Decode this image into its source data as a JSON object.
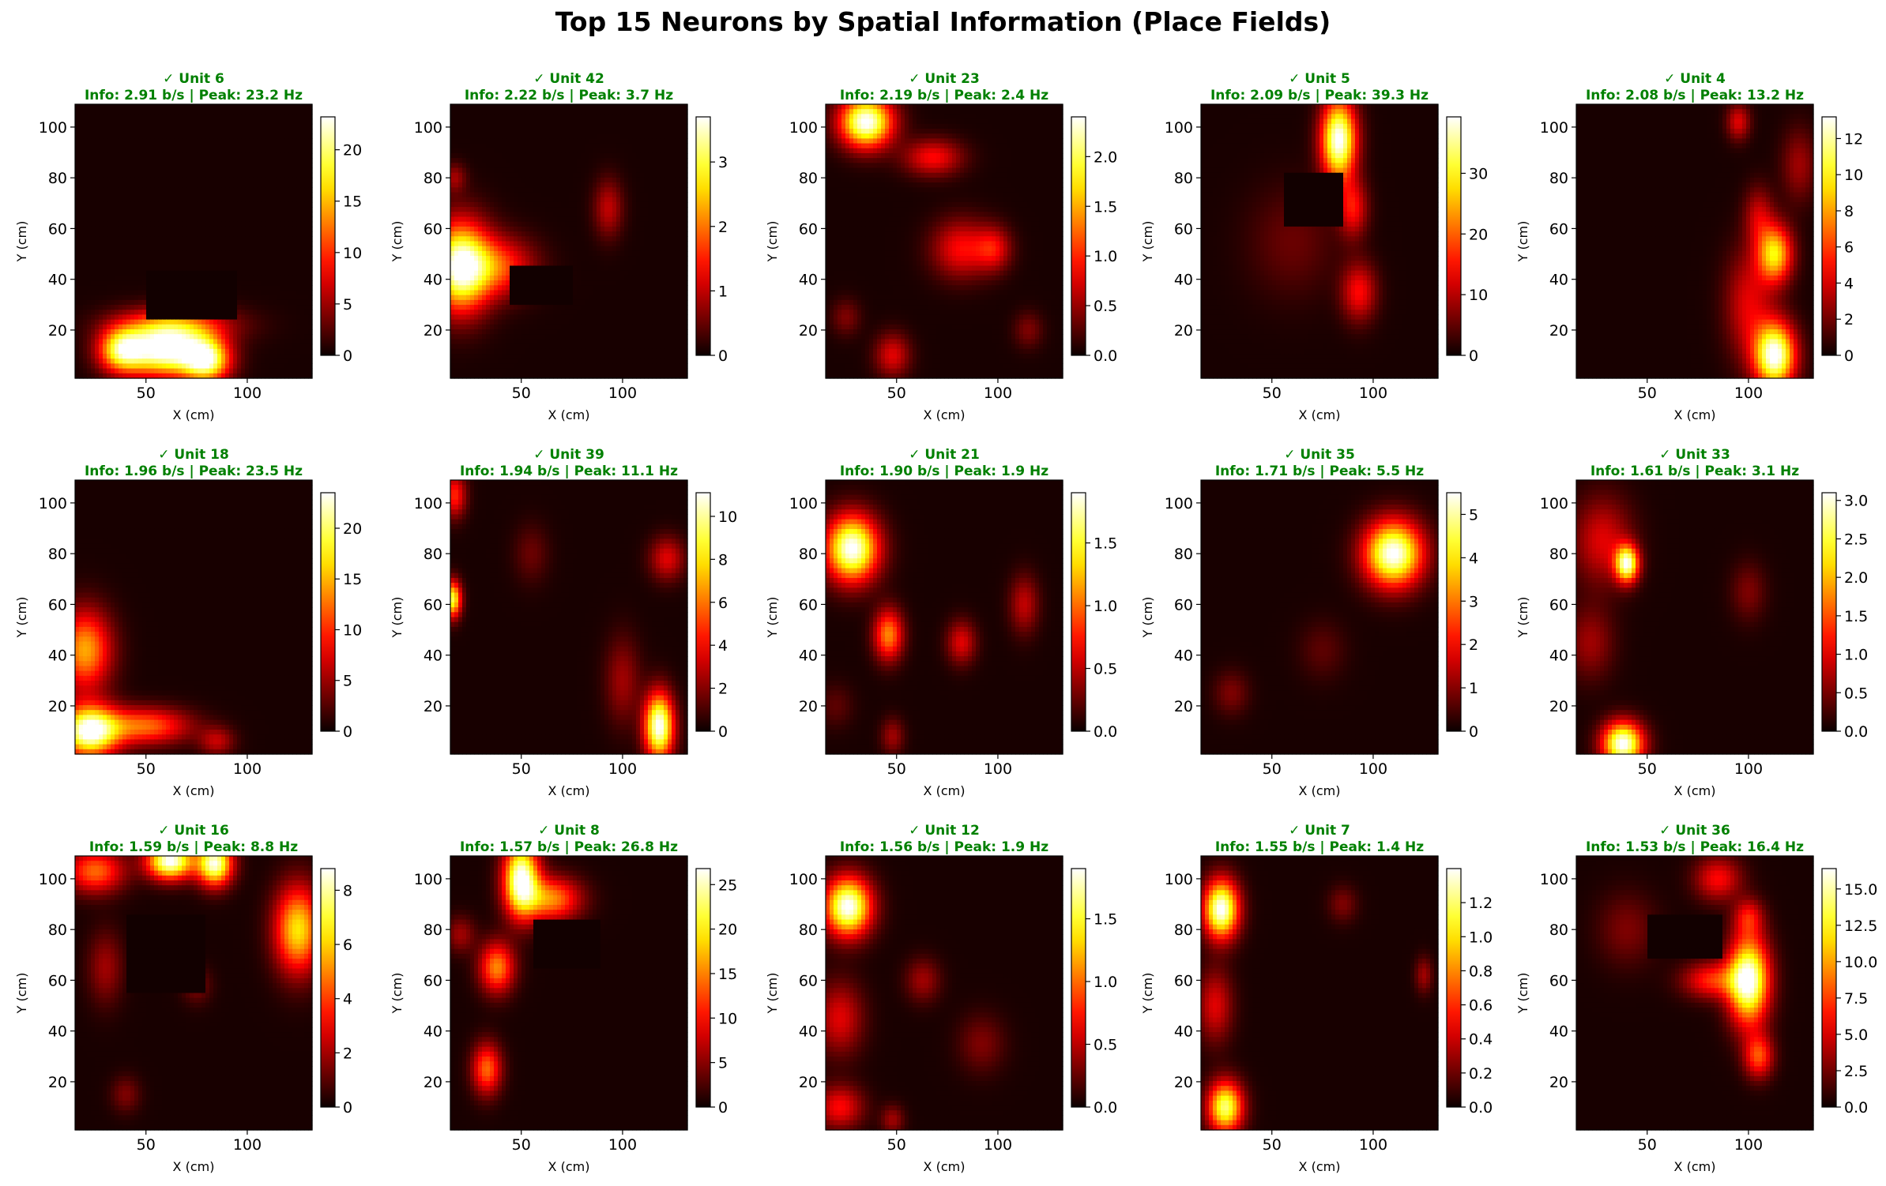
{
  "figure": {
    "title": "Top 15 Neurons by Spatial Information (Place Fields)"
  },
  "chart_data": {
    "type": "heatmap",
    "colormap": "hot",
    "status_color": "#008000",
    "xlabel": "X (cm)",
    "ylabel": "Y (cm)",
    "xlim": [
      15,
      132
    ],
    "ylim": [
      1,
      109
    ],
    "xticks": [
      50,
      100
    ],
    "yticks": [
      20,
      40,
      60,
      80,
      100
    ],
    "panels": [
      {
        "unit": "✓ Unit 6",
        "stats": "Info: 2.91 b/s | Peak: 23.2 Hz",
        "peak": 23.2,
        "cbar_max": 23.2,
        "cbar_ticks": [
          0,
          5,
          10,
          15,
          20
        ],
        "fields": [
          [
            60,
            12,
            14,
            7,
            1.0
          ],
          [
            38,
            12,
            8,
            6,
            0.7
          ],
          [
            80,
            8,
            8,
            6,
            0.8
          ],
          [
            65,
            22,
            20,
            5,
            0.4
          ]
        ],
        "holes": [
          [
            50,
            95,
            24,
            44
          ]
        ]
      },
      {
        "unit": "✓ Unit 42",
        "stats": "Info: 2.22 b/s | Peak: 3.7 Hz",
        "peak": 3.7,
        "cbar_max": 3.7,
        "cbar_ticks": [
          0,
          1,
          2,
          3
        ],
        "fields": [
          [
            20,
            45,
            10,
            12,
            1.0
          ],
          [
            40,
            45,
            12,
            8,
            0.4
          ],
          [
            93,
            68,
            5,
            8,
            0.25
          ],
          [
            17,
            80,
            4,
            4,
            0.2
          ]
        ],
        "holes": [
          [
            45,
            75,
            30,
            45
          ]
        ]
      },
      {
        "unit": "✓ Unit 23",
        "stats": "Info: 2.19 b/s | Peak: 2.4 Hz",
        "peak": 2.4,
        "cbar_max": 2.4,
        "cbar_ticks": [
          0.0,
          0.5,
          1.0,
          1.5,
          2.0
        ],
        "fields": [
          [
            35,
            102,
            9,
            7,
            1.0
          ],
          [
            68,
            88,
            10,
            5,
            0.35
          ],
          [
            82,
            52,
            10,
            8,
            0.35
          ],
          [
            98,
            52,
            6,
            6,
            0.3
          ],
          [
            48,
            10,
            6,
            6,
            0.3
          ],
          [
            25,
            25,
            5,
            5,
            0.15
          ],
          [
            115,
            20,
            5,
            5,
            0.15
          ]
        ],
        "holes": []
      },
      {
        "unit": "✓ Unit 5",
        "stats": "Info: 2.09 b/s | Peak: 39.3 Hz",
        "peak": 39.3,
        "cbar_max": 39.3,
        "cbar_ticks": [
          0,
          10,
          20,
          30
        ],
        "fields": [
          [
            83,
            95,
            6,
            11,
            1.0
          ],
          [
            90,
            68,
            5,
            8,
            0.35
          ],
          [
            93,
            35,
            6,
            8,
            0.35
          ],
          [
            60,
            55,
            15,
            15,
            0.12
          ]
        ],
        "holes": [
          [
            55,
            85,
            60,
            82
          ]
        ]
      },
      {
        "unit": "✓ Unit 4",
        "stats": "Info: 2.08 b/s | Peak: 13.2 Hz",
        "peak": 13.2,
        "cbar_max": 13.2,
        "cbar_ticks": [
          0,
          2,
          4,
          6,
          8,
          10,
          12
        ],
        "fields": [
          [
            113,
            10,
            7,
            9,
            1.0
          ],
          [
            113,
            50,
            6,
            8,
            0.7
          ],
          [
            100,
            30,
            8,
            15,
            0.3
          ],
          [
            95,
            102,
            4,
            5,
            0.3
          ],
          [
            125,
            85,
            6,
            10,
            0.2
          ],
          [
            105,
            65,
            5,
            8,
            0.25
          ]
        ],
        "holes": []
      },
      {
        "unit": "✓ Unit 18",
        "stats": "Info: 1.96 b/s | Peak: 23.5 Hz",
        "peak": 23.5,
        "cbar_max": 23.5,
        "cbar_ticks": [
          0,
          5,
          10,
          15,
          20
        ],
        "fields": [
          [
            22,
            10,
            10,
            7,
            1.0
          ],
          [
            20,
            42,
            9,
            11,
            0.6
          ],
          [
            50,
            12,
            15,
            5,
            0.5
          ],
          [
            85,
            6,
            6,
            4,
            0.25
          ]
        ],
        "holes": []
      },
      {
        "unit": "✓ Unit 39",
        "stats": "Info: 1.94 b/s | Peak: 11.1 Hz",
        "peak": 11.1,
        "cbar_max": 11.1,
        "cbar_ticks": [
          0,
          2,
          4,
          6,
          8,
          10
        ],
        "fields": [
          [
            118,
            12,
            5,
            9,
            1.0
          ],
          [
            16,
            62,
            3,
            5,
            0.8
          ],
          [
            17,
            103,
            4,
            6,
            0.4
          ],
          [
            122,
            78,
            6,
            6,
            0.3
          ],
          [
            100,
            30,
            6,
            12,
            0.2
          ],
          [
            55,
            80,
            6,
            8,
            0.12
          ]
        ],
        "holes": []
      },
      {
        "unit": "✓ Unit 21",
        "stats": "Info: 1.90 b/s | Peak: 1.9 Hz",
        "peak": 1.9,
        "cbar_max": 1.9,
        "cbar_ticks": [
          0.0,
          0.5,
          1.0,
          1.5
        ],
        "fields": [
          [
            28,
            82,
            9,
            9,
            1.0
          ],
          [
            46,
            48,
            5,
            7,
            0.55
          ],
          [
            82,
            45,
            5,
            6,
            0.3
          ],
          [
            113,
            60,
            5,
            8,
            0.25
          ],
          [
            48,
            8,
            4,
            5,
            0.2
          ],
          [
            20,
            20,
            6,
            6,
            0.1
          ]
        ],
        "holes": []
      },
      {
        "unit": "✓ Unit 35",
        "stats": "Info: 1.71 b/s | Peak: 5.5 Hz",
        "peak": 5.5,
        "cbar_max": 5.5,
        "cbar_ticks": [
          0,
          1,
          2,
          3,
          4,
          5
        ],
        "fields": [
          [
            110,
            80,
            10,
            9,
            1.0
          ],
          [
            30,
            25,
            6,
            6,
            0.15
          ],
          [
            75,
            42,
            8,
            8,
            0.1
          ]
        ],
        "holes": []
      },
      {
        "unit": "✓ Unit 33",
        "stats": "Info: 1.61 b/s | Peak: 3.1 Hz",
        "peak": 3.1,
        "cbar_max": 3.1,
        "cbar_ticks": [
          0.0,
          0.5,
          1.0,
          1.5,
          2.0,
          2.5,
          3.0
        ],
        "fields": [
          [
            38,
            5,
            7,
            6,
            1.0
          ],
          [
            40,
            76,
            4,
            5,
            0.9
          ],
          [
            28,
            85,
            10,
            12,
            0.3
          ],
          [
            22,
            45,
            8,
            10,
            0.2
          ],
          [
            100,
            65,
            6,
            8,
            0.15
          ]
        ],
        "holes": []
      },
      {
        "unit": "✓ Unit 16",
        "stats": "Info: 1.59 b/s | Peak: 8.8 Hz",
        "peak": 8.8,
        "cbar_max": 8.8,
        "cbar_ticks": [
          0,
          2,
          4,
          6,
          8
        ],
        "fields": [
          [
            62,
            107,
            8,
            5,
            1.0
          ],
          [
            84,
            106,
            6,
            6,
            0.95
          ],
          [
            125,
            80,
            8,
            12,
            0.7
          ],
          [
            25,
            103,
            10,
            6,
            0.5
          ],
          [
            30,
            65,
            6,
            10,
            0.2
          ],
          [
            40,
            15,
            5,
            5,
            0.15
          ],
          [
            75,
            58,
            5,
            5,
            0.15
          ]
        ],
        "holes": [
          [
            40,
            80,
            55,
            85
          ]
        ]
      },
      {
        "unit": "✓ Unit 8",
        "stats": "Info: 1.57 b/s | Peak: 26.8 Hz",
        "peak": 26.8,
        "cbar_max": 26.8,
        "cbar_ticks": [
          0,
          5,
          10,
          15,
          20,
          25
        ],
        "fields": [
          [
            50,
            100,
            6,
            10,
            1.0
          ],
          [
            65,
            92,
            10,
            6,
            0.55
          ],
          [
            38,
            65,
            6,
            7,
            0.55
          ],
          [
            33,
            25,
            5,
            7,
            0.5
          ],
          [
            20,
            78,
            5,
            5,
            0.2
          ]
        ],
        "holes": [
          [
            55,
            90,
            65,
            83
          ]
        ]
      },
      {
        "unit": "✓ Unit 12",
        "stats": "Info: 1.56 b/s | Peak: 1.9 Hz",
        "peak": 1.9,
        "cbar_max": 1.9,
        "cbar_ticks": [
          0.0,
          0.5,
          1.0,
          1.5
        ],
        "fields": [
          [
            26,
            89,
            8,
            8,
            1.0
          ],
          [
            22,
            45,
            8,
            10,
            0.3
          ],
          [
            22,
            10,
            8,
            6,
            0.35
          ],
          [
            63,
            60,
            6,
            6,
            0.2
          ],
          [
            92,
            35,
            8,
            8,
            0.15
          ],
          [
            48,
            5,
            4,
            4,
            0.2
          ]
        ],
        "holes": []
      },
      {
        "unit": "✓ Unit 7",
        "stats": "Info: 1.55 b/s | Peak: 1.4 Hz",
        "peak": 1.4,
        "cbar_max": 1.4,
        "cbar_ticks": [
          0.0,
          0.2,
          0.4,
          0.6,
          0.8,
          1.0,
          1.2
        ],
        "fields": [
          [
            25,
            88,
            6,
            8,
            1.0
          ],
          [
            27,
            10,
            6,
            7,
            0.85
          ],
          [
            22,
            50,
            6,
            10,
            0.3
          ],
          [
            85,
            90,
            5,
            5,
            0.15
          ],
          [
            125,
            62,
            3,
            5,
            0.2
          ]
        ],
        "holes": []
      },
      {
        "unit": "✓ Unit 36",
        "stats": "Info: 1.53 b/s | Peak: 16.4 Hz",
        "peak": 16.4,
        "cbar_max": 16.4,
        "cbar_ticks": [
          0.0,
          2.5,
          5.0,
          7.5,
          10.0,
          12.5,
          15.0
        ],
        "fields": [
          [
            100,
            60,
            7,
            12,
            1.0
          ],
          [
            105,
            30,
            5,
            6,
            0.45
          ],
          [
            82,
            60,
            10,
            5,
            0.4
          ],
          [
            85,
            100,
            8,
            6,
            0.35
          ],
          [
            40,
            80,
            10,
            10,
            0.15
          ],
          [
            100,
            85,
            5,
            5,
            0.3
          ]
        ],
        "holes": [
          [
            50,
            88,
            68,
            85
          ]
        ]
      }
    ]
  }
}
